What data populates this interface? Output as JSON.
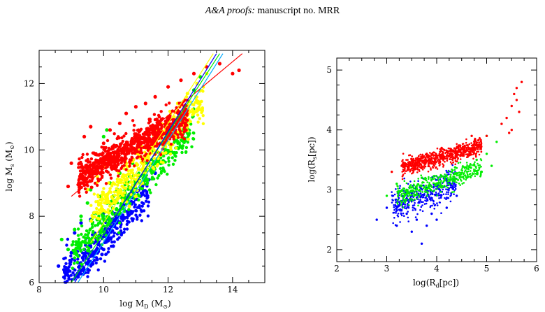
{
  "header": {
    "journal": "A&A proofs:",
    "manuscript": "manuscript no. MRR"
  },
  "chart_data": [
    {
      "type": "scatter",
      "title": "",
      "xlabel": "log M_D (M_⊙)",
      "xlabel_main": "log M",
      "xlabel_sub": "D",
      "xlabel_unit_open": "(M",
      "xlabel_unit_close": ")",
      "ylabel": "log M_s (M_⊙)",
      "ylabel_main": "log M",
      "ylabel_sub": "s",
      "ylabel_unit_open": "(M",
      "ylabel_unit_close": ")",
      "xlim": [
        8,
        15
      ],
      "ylim": [
        6,
        13
      ],
      "xticks": [
        8,
        10,
        12,
        14
      ],
      "yticks": [
        6,
        8,
        10,
        12
      ],
      "xtick_labels": [
        "8",
        "10",
        "12",
        "14"
      ],
      "ytick_labels": [
        "6",
        "8",
        "10",
        "12"
      ],
      "grid": false,
      "series": [
        {
          "color": "#0000ff",
          "values": [
            [
              8.6,
              6.5
            ],
            [
              8.8,
              6.3
            ],
            [
              9.0,
              6.9
            ],
            [
              9.2,
              6.6
            ],
            [
              9.4,
              7.0
            ],
            [
              9.5,
              6.4
            ],
            [
              9.6,
              6.8
            ],
            [
              9.7,
              7.2
            ],
            [
              9.8,
              6.7
            ],
            [
              9.9,
              7.4
            ],
            [
              10.0,
              7.0
            ],
            [
              10.1,
              7.3
            ],
            [
              10.2,
              7.6
            ],
            [
              10.3,
              7.1
            ],
            [
              10.4,
              7.8
            ],
            [
              10.5,
              7.5
            ],
            [
              10.6,
              8.0
            ],
            [
              10.8,
              8.3
            ],
            [
              11.0,
              8.6
            ],
            [
              11.2,
              8.9
            ],
            [
              11.4,
              9.1
            ],
            [
              11.6,
              9.3
            ],
            [
              9.1,
              7.5
            ],
            [
              9.3,
              7.8
            ],
            [
              9.6,
              7.9
            ],
            [
              10.0,
              8.1
            ],
            [
              9.45,
              6.9
            ],
            [
              9.55,
              7.1
            ],
            [
              9.65,
              6.6
            ],
            [
              9.75,
              6.95
            ],
            [
              9.85,
              7.15
            ],
            [
              9.95,
              6.85
            ],
            [
              10.05,
              7.25
            ],
            [
              9.35,
              6.75
            ],
            [
              9.25,
              7.05
            ],
            [
              10.15,
              7.45
            ]
          ],
          "_gen": {
            "n": 330,
            "xmin": 8.7,
            "xmax": 11.4,
            "slope": 0.95,
            "intercept": -2.2,
            "noise": 0.5,
            "seed": 11
          }
        },
        {
          "color": "#00ee00",
          "values": [
            [
              8.7,
              7.3
            ],
            [
              8.9,
              7.0
            ],
            [
              9.1,
              7.6
            ],
            [
              9.3,
              8.0
            ],
            [
              9.5,
              8.4
            ],
            [
              9.7,
              8.1
            ],
            [
              9.9,
              8.6
            ],
            [
              10.1,
              8.4
            ],
            [
              10.2,
              9.0
            ],
            [
              10.3,
              8.6
            ],
            [
              10.5,
              9.3
            ],
            [
              10.7,
              9.0
            ],
            [
              10.9,
              9.6
            ],
            [
              11.1,
              9.8
            ],
            [
              11.3,
              10.1
            ],
            [
              11.6,
              10.5
            ],
            [
              12.0,
              10.9
            ],
            [
              12.4,
              11.4
            ],
            [
              12.8,
              11.8
            ],
            [
              13.0,
              12.2
            ],
            [
              10.0,
              10.4
            ],
            [
              10.1,
              10.6
            ],
            [
              9.6,
              8.8
            ],
            [
              9.8,
              7.9
            ],
            [
              10.4,
              8.2
            ],
            [
              10.6,
              8.5
            ]
          ],
          "_gen": {
            "n": 420,
            "xmin": 9.0,
            "xmax": 12.8,
            "slope": 1.0,
            "intercept": -2.1,
            "noise": 0.4,
            "seed": 23
          }
        },
        {
          "color": "#ffff00",
          "values": [
            [
              9.5,
              8.8
            ],
            [
              9.8,
              9.2
            ],
            [
              10.0,
              9.5
            ],
            [
              10.3,
              9.0
            ],
            [
              10.5,
              8.7
            ],
            [
              10.7,
              9.6
            ],
            [
              11.0,
              9.9
            ],
            [
              11.3,
              10.3
            ],
            [
              11.6,
              10.6
            ],
            [
              12.0,
              11.0
            ],
            [
              12.3,
              11.4
            ],
            [
              12.6,
              11.7
            ],
            [
              12.9,
              12.0
            ],
            [
              13.2,
              12.3
            ],
            [
              10.8,
              8.3
            ],
            [
              11.0,
              8.6
            ],
            [
              11.2,
              9.0
            ]
          ],
          "_gen": {
            "n": 420,
            "xmin": 9.6,
            "xmax": 13.1,
            "slope": 0.98,
            "intercept": -1.4,
            "noise": 0.45,
            "seed": 37
          }
        },
        {
          "color": "#ff0000",
          "values": [
            [
              9.3,
              9.0
            ],
            [
              9.5,
              9.4
            ],
            [
              9.7,
              9.9
            ],
            [
              10.0,
              10.2
            ],
            [
              10.2,
              10.6
            ],
            [
              10.5,
              10.8
            ],
            [
              10.7,
              11.1
            ],
            [
              11.0,
              11.3
            ],
            [
              11.3,
              11.4
            ],
            [
              11.6,
              11.6
            ],
            [
              12.0,
              11.9
            ],
            [
              12.4,
              12.1
            ],
            [
              12.8,
              12.3
            ],
            [
              13.2,
              12.5
            ],
            [
              13.6,
              12.6
            ],
            [
              14.0,
              12.3
            ],
            [
              14.2,
              12.4
            ],
            [
              9.4,
              10.4
            ],
            [
              9.6,
              10.7
            ],
            [
              9.0,
              9.6
            ],
            [
              8.9,
              8.9
            ]
          ],
          "_gen": {
            "n": 850,
            "xmin": 9.2,
            "xmax": 12.6,
            "slope": 0.55,
            "intercept": 4.1,
            "noise": 0.42,
            "seed": 53
          }
        }
      ],
      "lines": [
        {
          "color": "#ff0000",
          "points": [
            [
              9.0,
              8.6
            ],
            [
              14.3,
              12.9
            ]
          ]
        },
        {
          "color": "#00ee00",
          "points": [
            [
              9.0,
              6.0
            ],
            [
              13.6,
              12.9
            ]
          ]
        },
        {
          "color": "#ffff00",
          "points": [
            [
              9.6,
              7.2
            ],
            [
              13.4,
              12.9
            ]
          ]
        },
        {
          "color": "#0000ff",
          "points": [
            [
              9.1,
              6.0
            ],
            [
              13.5,
              12.9
            ]
          ]
        },
        {
          "color": "#00aaff",
          "points": [
            [
              9.2,
              6.0
            ],
            [
              13.7,
              12.9
            ]
          ]
        }
      ]
    },
    {
      "type": "scatter",
      "title": "",
      "xlabel": "log(R_d[pc])",
      "xlabel_main": "log(R",
      "xlabel_sub": "d",
      "xlabel_tail": "[pc])",
      "ylabel": "log(R_s[pc])",
      "ylabel_main": "log(R",
      "ylabel_sub": "s",
      "ylabel_tail": "[pc])",
      "xlim": [
        2,
        6
      ],
      "ylim": [
        1.8,
        5.2
      ],
      "xticks": [
        2,
        3,
        4,
        5,
        6
      ],
      "yticks": [
        2,
        3,
        4,
        5
      ],
      "xtick_labels": [
        "2",
        "3",
        "4",
        "5",
        "6"
      ],
      "ytick_labels": [
        "2",
        "3",
        "4",
        "5"
      ],
      "grid": false,
      "series": [
        {
          "color": "#0000ff",
          "values": [
            [
              2.8,
              2.5
            ],
            [
              3.0,
              2.7
            ],
            [
              3.2,
              2.4
            ],
            [
              3.4,
              2.6
            ],
            [
              3.5,
              2.3
            ],
            [
              3.6,
              2.5
            ],
            [
              3.7,
              2.1
            ],
            [
              3.8,
              2.4
            ],
            [
              3.9,
              2.6
            ],
            [
              4.0,
              2.5
            ],
            [
              3.3,
              2.8
            ],
            [
              3.5,
              2.9
            ],
            [
              4.2,
              2.7
            ],
            [
              4.4,
              2.9
            ]
          ],
          "_gen": {
            "n": 420,
            "xmin": 3.1,
            "xmax": 4.4,
            "slope": 0.3,
            "intercept": 1.8,
            "noise": 0.22,
            "seed": 71
          }
        },
        {
          "color": "#00ee00",
          "values": [
            [
              3.0,
              2.9
            ],
            [
              3.2,
              3.1
            ],
            [
              3.4,
              3.0
            ],
            [
              3.7,
              3.2
            ],
            [
              4.0,
              3.1
            ],
            [
              4.3,
              3.3
            ],
            [
              4.6,
              3.2
            ],
            [
              4.8,
              3.5
            ],
            [
              5.0,
              3.6
            ],
            [
              5.2,
              3.8
            ],
            [
              5.0,
              3.9
            ],
            [
              4.9,
              3.3
            ],
            [
              5.1,
              3.4
            ]
          ],
          "_gen": {
            "n": 420,
            "xmin": 3.2,
            "xmax": 4.9,
            "slope": 0.28,
            "intercept": 2.0,
            "noise": 0.14,
            "seed": 83
          }
        },
        {
          "color": "#ff0000",
          "values": [
            [
              3.1,
              3.3
            ],
            [
              3.3,
              3.4
            ],
            [
              3.5,
              3.5
            ],
            [
              3.8,
              3.6
            ],
            [
              4.1,
              3.7
            ],
            [
              4.4,
              3.7
            ],
            [
              4.7,
              3.9
            ],
            [
              5.0,
              3.9
            ],
            [
              5.3,
              4.1
            ],
            [
              5.4,
              4.2
            ],
            [
              5.5,
              4.4
            ],
            [
              5.6,
              4.5
            ],
            [
              5.6,
              4.7
            ],
            [
              5.7,
              4.8
            ],
            [
              5.5,
              4.0
            ],
            [
              5.65,
              4.3
            ],
            [
              5.55,
              4.6
            ],
            [
              5.45,
              3.95
            ]
          ],
          "_gen": {
            "n": 750,
            "xmin": 3.3,
            "xmax": 4.9,
            "slope": 0.22,
            "intercept": 2.65,
            "noise": 0.12,
            "seed": 97
          }
        }
      ],
      "lines": []
    }
  ]
}
